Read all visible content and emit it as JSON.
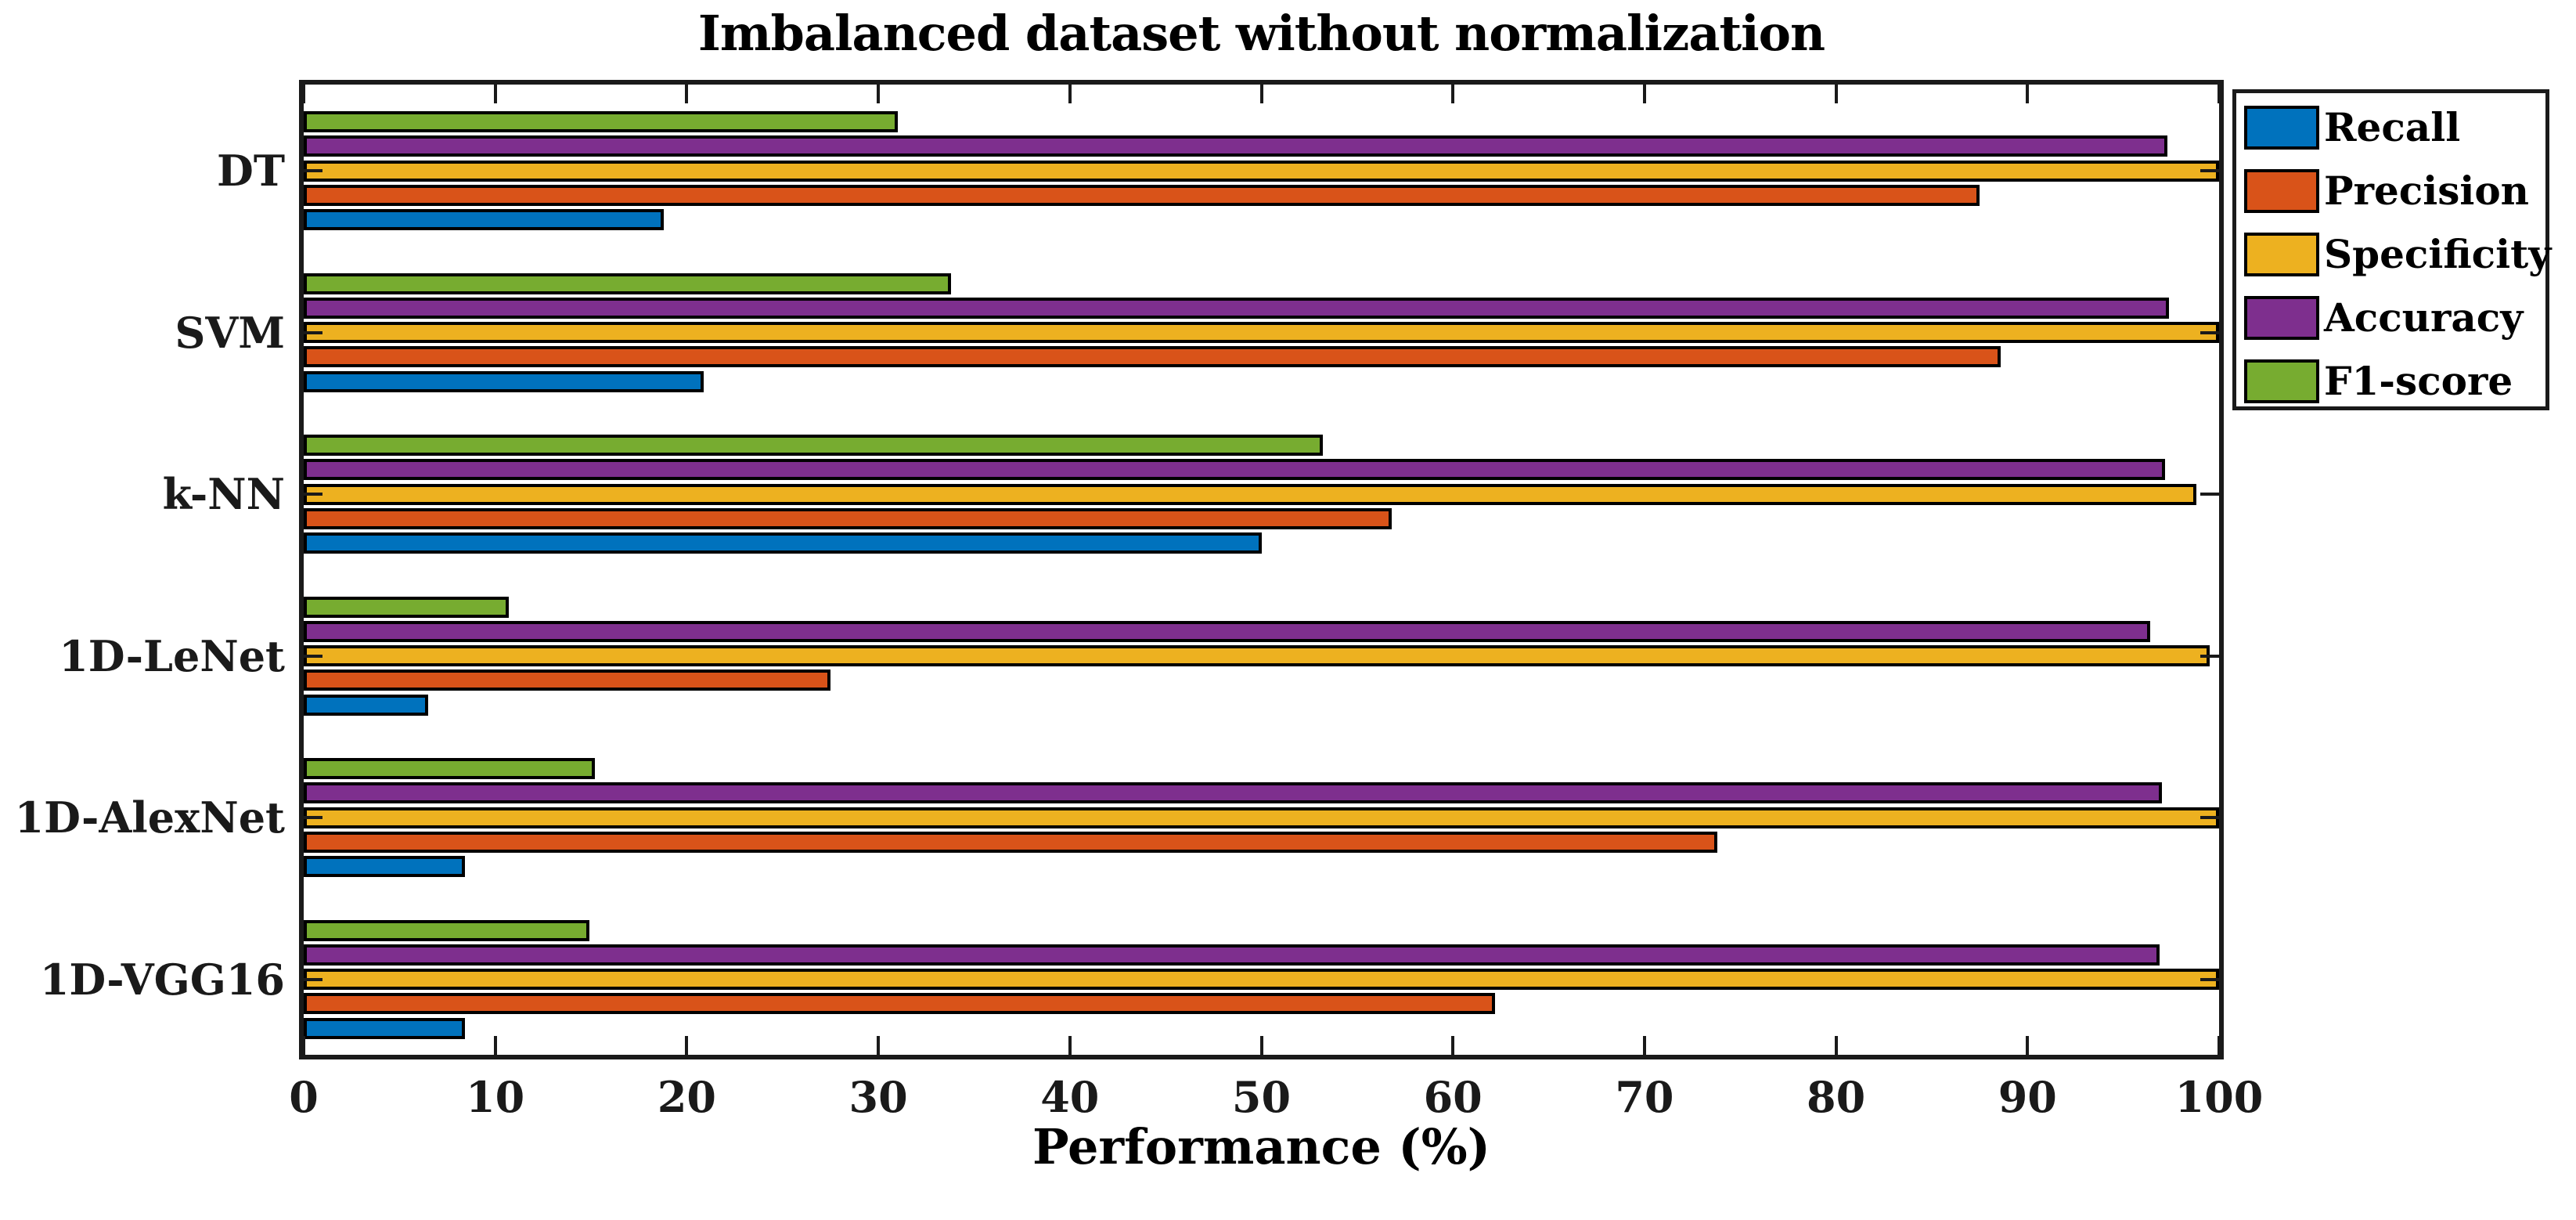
{
  "title": "Imbalanced dataset without normalization",
  "chart_data": {
    "type": "bar",
    "orientation": "horizontal",
    "title": "Imbalanced dataset without normalization",
    "xlabel": "Performance (%)",
    "ylabel": "",
    "xlim": [
      0,
      100
    ],
    "x_ticks": [
      0,
      10,
      20,
      30,
      40,
      50,
      60,
      70,
      80,
      90,
      100
    ],
    "grid": false,
    "legend_position": "top-right-outside",
    "categories": [
      "DT",
      "SVM",
      "k-NN",
      "1D-LeNet",
      "1D-AlexNet",
      "1D-VGG16"
    ],
    "series": [
      {
        "name": "Recall",
        "color": "#0072BD",
        "values": [
          18.8,
          20.9,
          50.0,
          6.5,
          8.4,
          8.4
        ]
      },
      {
        "name": "Precision",
        "color": "#D95319",
        "values": [
          87.5,
          88.6,
          56.8,
          27.5,
          73.8,
          62.2
        ]
      },
      {
        "name": "Specificity",
        "color": "#EDB120",
        "values": [
          100,
          100,
          98.8,
          99.5,
          100,
          100
        ]
      },
      {
        "name": "Accuracy",
        "color": "#7E2F8E",
        "values": [
          97.3,
          97.4,
          97.2,
          96.4,
          97.0,
          96.9
        ]
      },
      {
        "name": "F1-score",
        "color": "#77AC30",
        "values": [
          31.0,
          33.8,
          53.2,
          10.7,
          15.2,
          14.9
        ]
      }
    ],
    "bar_order_top_to_bottom": [
      "F1-score",
      "Accuracy",
      "Specificity",
      "Precision",
      "Recall"
    ],
    "bar_edge_color": "#000000",
    "axis_color": "#1a1a1a"
  },
  "legend": {
    "items": [
      {
        "label": "Recall",
        "color": "#0072BD"
      },
      {
        "label": "Precision",
        "color": "#D95319"
      },
      {
        "label": "Specificity",
        "color": "#EDB120"
      },
      {
        "label": "Accuracy",
        "color": "#7E2F8E"
      },
      {
        "label": "F1-score",
        "color": "#77AC30"
      }
    ]
  }
}
